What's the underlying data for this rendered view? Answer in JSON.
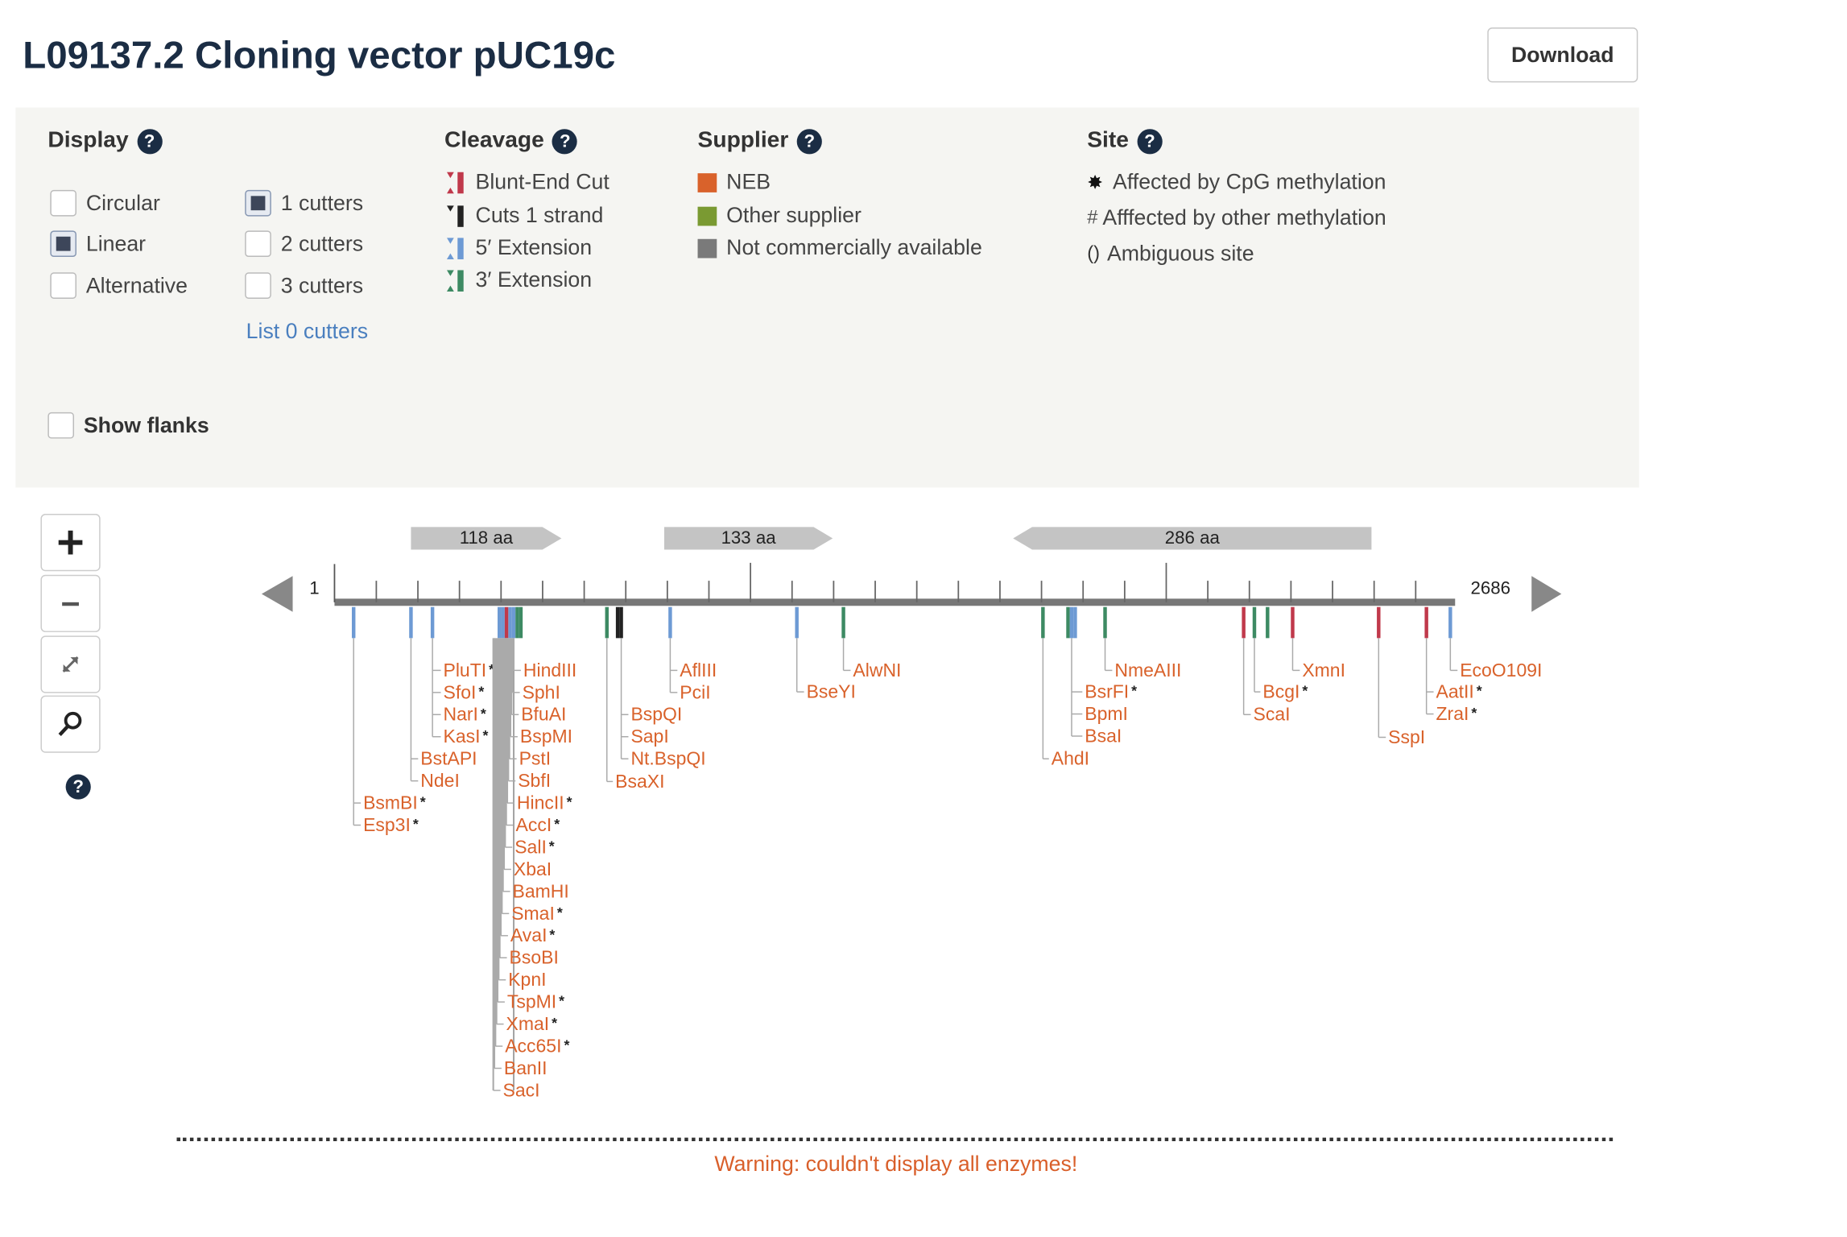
{
  "title": "L09137.2 Cloning vector pUC19c",
  "download_label": "Download",
  "display": {
    "header": "Display",
    "options": [
      {
        "label": "Circular",
        "checked": false
      },
      {
        "label": "Linear",
        "checked": true
      },
      {
        "label": "Alternative",
        "checked": false
      }
    ],
    "cutters": [
      {
        "label": "1 cutters",
        "checked": true
      },
      {
        "label": "2 cutters",
        "checked": false
      },
      {
        "label": "3 cutters",
        "checked": false
      }
    ],
    "list_link": "List 0 cutters"
  },
  "cleavage": {
    "header": "Cleavage",
    "items": [
      "Blunt-End Cut",
      "Cuts 1 strand",
      "5′ Extension",
      "3′ Extension"
    ],
    "colors": [
      "#c0394b",
      "#222222",
      "#6d9ad4",
      "#3d8a63"
    ]
  },
  "supplier": {
    "header": "Supplier",
    "items": [
      {
        "label": "NEB",
        "color": "#d9622b"
      },
      {
        "label": "Other supplier",
        "color": "#7a9a32"
      },
      {
        "label": "Not commercially available",
        "color": "#7a7a7a"
      }
    ]
  },
  "site": {
    "header": "Site",
    "items": [
      {
        "symbol": "✸",
        "label": "Affected by CpG methylation"
      },
      {
        "symbol": "#",
        "label": "Afffected by other methylation"
      },
      {
        "symbol": "()",
        "label": "Ambiguous site"
      }
    ]
  },
  "show_flanks": {
    "label": "Show flanks",
    "checked": false
  },
  "map": {
    "start": "1",
    "end": "2686",
    "orfs": [
      {
        "label": "118 aa",
        "direction": "forward"
      },
      {
        "label": "133 aa",
        "direction": "forward"
      },
      {
        "label": "286 aa",
        "direction": "reverse"
      }
    ],
    "enzyme_color": "#d9622b",
    "groups": [
      {
        "enzymes": [
          [
            "BsmBI",
            true
          ],
          [
            "Esp3I",
            true
          ]
        ]
      },
      {
        "enzymes": [
          [
            "BstAPI",
            false
          ],
          [
            "NdeI",
            false
          ]
        ]
      },
      {
        "enzymes": [
          [
            "PluTI",
            true
          ],
          [
            "SfoI",
            true
          ],
          [
            "NarI",
            true
          ],
          [
            "KasI",
            true
          ]
        ]
      },
      {
        "enzymes": [
          [
            "HindIII",
            false
          ],
          [
            "SphI",
            false
          ],
          [
            "BfuAI",
            false
          ],
          [
            "BspMI",
            false
          ],
          [
            "PstI",
            false
          ],
          [
            "SbfI",
            false
          ],
          [
            "HincII",
            true
          ],
          [
            "AccI",
            true
          ],
          [
            "SalI",
            true
          ],
          [
            "XbaI",
            false
          ],
          [
            "BamHI",
            false
          ],
          [
            "SmaI",
            true
          ],
          [
            "AvaI",
            true
          ],
          [
            "BsoBI",
            false
          ],
          [
            "KpnI",
            false
          ],
          [
            "TspMI",
            true
          ],
          [
            "XmaI",
            true
          ],
          [
            "Acc65I",
            true
          ],
          [
            "BanII",
            false
          ],
          [
            "SacI",
            false
          ]
        ]
      },
      {
        "enzymes": [
          [
            "BsaXI",
            false
          ]
        ]
      },
      {
        "enzymes": [
          [
            "BspQI",
            false
          ],
          [
            "SapI",
            false
          ],
          [
            "Nt.BspQI",
            false
          ]
        ]
      },
      {
        "enzymes": [
          [
            "AflIII",
            false
          ],
          [
            "PciI",
            false
          ]
        ]
      },
      {
        "enzymes": [
          [
            "BseYI",
            false
          ]
        ]
      },
      {
        "enzymes": [
          [
            "AlwNI",
            false
          ]
        ]
      },
      {
        "enzymes": [
          [
            "AhdI",
            false
          ]
        ]
      },
      {
        "enzymes": [
          [
            "BsrFI",
            true
          ],
          [
            "BpmI",
            false
          ],
          [
            "BsaI",
            false
          ]
        ]
      },
      {
        "enzymes": [
          [
            "NmeAIII",
            false
          ]
        ]
      },
      {
        "enzymes": [
          [
            "ScaI",
            false
          ]
        ]
      },
      {
        "enzymes": [
          [
            "BcgI",
            true
          ]
        ]
      },
      {
        "enzymes": [
          [
            "XmnI",
            false
          ]
        ]
      },
      {
        "enzymes": [
          [
            "SspI",
            false
          ]
        ]
      },
      {
        "enzymes": [
          [
            "AatII",
            true
          ],
          [
            "ZraI",
            true
          ]
        ]
      },
      {
        "enzymes": [
          [
            "EcoO109I",
            false
          ]
        ]
      }
    ],
    "warning": "Warning: couldn't display all enzymes!"
  }
}
